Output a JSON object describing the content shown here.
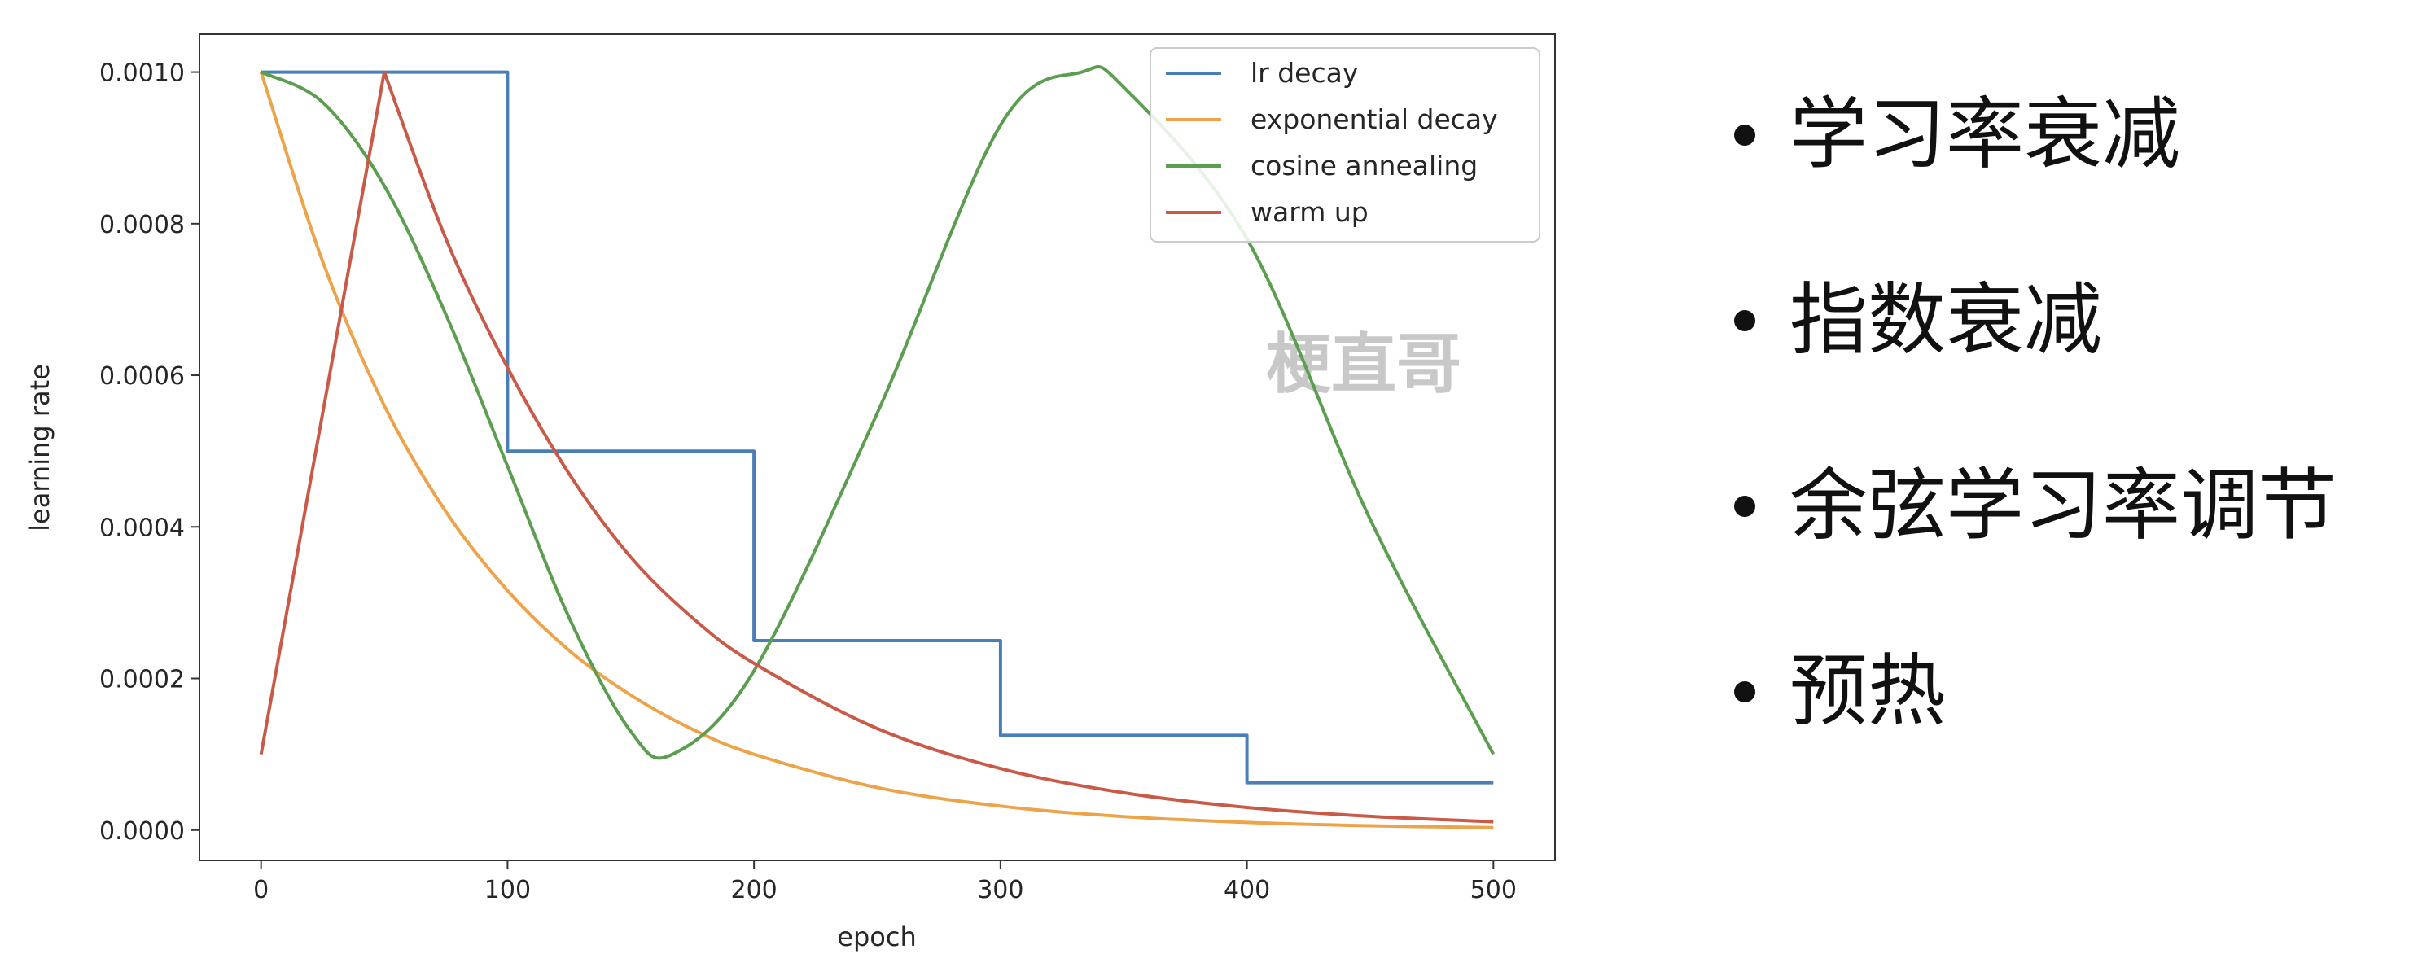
{
  "bullets": [
    "学习率衰减",
    "指数衰减",
    "余弦学习率调节",
    "预热"
  ],
  "watermark": "梗直哥",
  "chart_data": {
    "type": "line",
    "title": "",
    "xlabel": "epoch",
    "ylabel": "learning rate",
    "xlim": [
      -25,
      525
    ],
    "ylim": [
      -4e-05,
      0.00105
    ],
    "xticks": [
      0,
      100,
      200,
      300,
      400,
      500
    ],
    "xtick_labels": [
      "0",
      "100",
      "200",
      "300",
      "400",
      "500"
    ],
    "yticks": [
      0.0,
      0.0002,
      0.0004,
      0.0006,
      0.0008,
      0.001
    ],
    "ytick_labels": [
      "0.0000",
      "0.0002",
      "0.0004",
      "0.0006",
      "0.0008",
      "0.0010"
    ],
    "grid": false,
    "legend_position": "top-right",
    "series": [
      {
        "name": "lr decay",
        "color": "#4a7fb5",
        "x": [
          0,
          100,
          100,
          200,
          200,
          300,
          300,
          400,
          400,
          500
        ],
        "y": [
          0.001,
          0.001,
          0.0005,
          0.0005,
          0.00025,
          0.00025,
          0.000125,
          0.000125,
          6.25e-05,
          6.25e-05
        ]
      },
      {
        "name": "exponential decay",
        "color": "#eda34a",
        "x": [
          0,
          25,
          50,
          75,
          100,
          125,
          150,
          175,
          200,
          250,
          300,
          350,
          400,
          450,
          500
        ],
        "y": [
          0.001,
          0.00075,
          0.00056,
          0.00042,
          0.000316,
          0.000237,
          0.000178,
          0.000133,
          0.0001,
          5.6e-05,
          3.16e-05,
          1.78e-05,
          1e-05,
          5.6e-06,
          3.2e-06
        ]
      },
      {
        "name": "cosine annealing",
        "color": "#5c9e4f",
        "x": [
          0,
          25,
          50,
          75,
          100,
          125,
          150,
          167,
          200,
          250,
          300,
          333,
          350,
          400,
          450,
          500
        ],
        "y": [
          0.001,
          0.00096,
          0.00085,
          0.00068,
          0.00048,
          0.00028,
          0.00013,
          0.0001,
          0.00021,
          0.00055,
          0.00093,
          0.001,
          0.00098,
          0.00078,
          0.00041,
          0.0001
        ]
      },
      {
        "name": "warm up",
        "color": "#c95a48",
        "x": [
          0,
          50,
          75,
          100,
          125,
          150,
          175,
          200,
          250,
          300,
          350,
          400,
          450,
          500
        ],
        "y": [
          0.0001,
          0.001,
          0.00078,
          0.00061,
          0.00047,
          0.00036,
          0.00028,
          0.00022,
          0.000134,
          8.11e-05,
          4.92e-05,
          2.98e-05,
          1.81e-05,
          1.1e-05
        ]
      }
    ]
  }
}
